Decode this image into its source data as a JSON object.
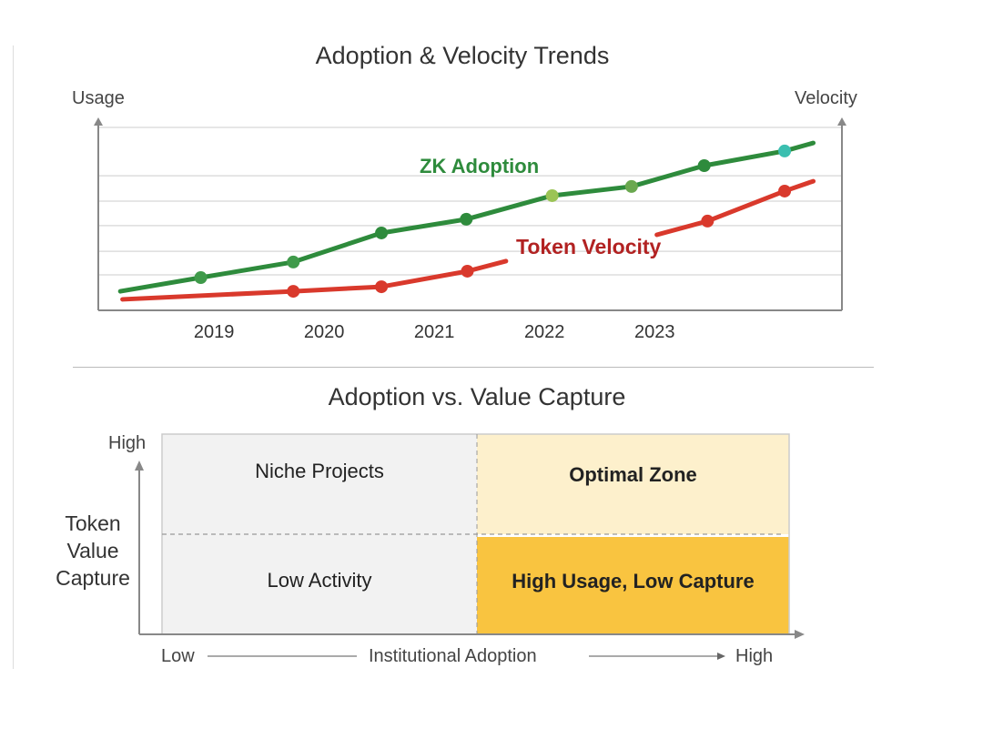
{
  "chart_data": [
    {
      "type": "line",
      "title": "Adoption & Velocity Trends",
      "ylabel": "Usage",
      "y2label": "Velocity",
      "xlabel": "",
      "x_tick_labels": [
        "2019",
        "2020",
        "2021",
        "2022",
        "2023"
      ],
      "x_ticks": [
        2019,
        2020,
        2021,
        2022,
        2023
      ],
      "xlim": [
        2017.95,
        2024.7
      ],
      "ylim": [
        0,
        100
      ],
      "grid": true,
      "series": [
        {
          "name": "ZK Adoption",
          "color": "#2e8b3c",
          "x": [
            2018.15,
            2018.88,
            2019.72,
            2020.52,
            2021.29,
            2022.07,
            2022.79,
            2023.45,
            2024.18,
            2024.44
          ],
          "y": [
            10.4,
            17.9,
            26.4,
            42.3,
            49.8,
            62.7,
            67.7,
            79.1,
            87.1,
            91.5
          ],
          "markers": [
            false,
            true,
            true,
            true,
            true,
            true,
            true,
            true,
            true,
            false
          ],
          "marker_colors": [
            "#2e8b3c",
            "#3f9a4a",
            "#3f9a4a",
            "#2e8b3c",
            "#2e8b3c",
            "#9bc455",
            "#6aa84f",
            "#2e8b3c",
            "#3bbfb0",
            "#2e8b3c"
          ]
        },
        {
          "name": "Token Velocity",
          "color": "#d9392c",
          "label_color": "#b22222",
          "segments": [
            {
              "x": [
                2018.17,
                2019.72,
                2020.52,
                2021.3,
                2021.65
              ],
              "y": [
                6.0,
                10.4,
                12.9,
                21.4,
                26.9
              ],
              "markers": [
                false,
                true,
                true,
                true,
                false
              ]
            },
            {
              "x": [
                2023.02,
                2023.48,
                2024.18,
                2024.44
              ],
              "y": [
                41.3,
                48.8,
                65.2,
                70.6
              ],
              "markers": [
                false,
                true,
                true,
                false
              ]
            }
          ]
        }
      ]
    },
    {
      "type": "quadrant",
      "title": "Adoption vs. Value Capture",
      "ylabel": "Token Value Capture",
      "y_high": "High",
      "x_low": "Low",
      "xlabel": "Institutional Adoption",
      "x_high": "High",
      "quadrants": [
        {
          "label": "Niche Projects",
          "position": "top-left",
          "color": "#f2f2f2"
        },
        {
          "label": "Optimal Zone",
          "position": "top-right",
          "color": "#fdf0cc"
        },
        {
          "label": "Low Activity",
          "position": "bottom-left",
          "color": "#f2f2f2"
        },
        {
          "label": "High Usage, Low Capture",
          "position": "bottom-right",
          "color": "#f9c440"
        }
      ]
    }
  ]
}
